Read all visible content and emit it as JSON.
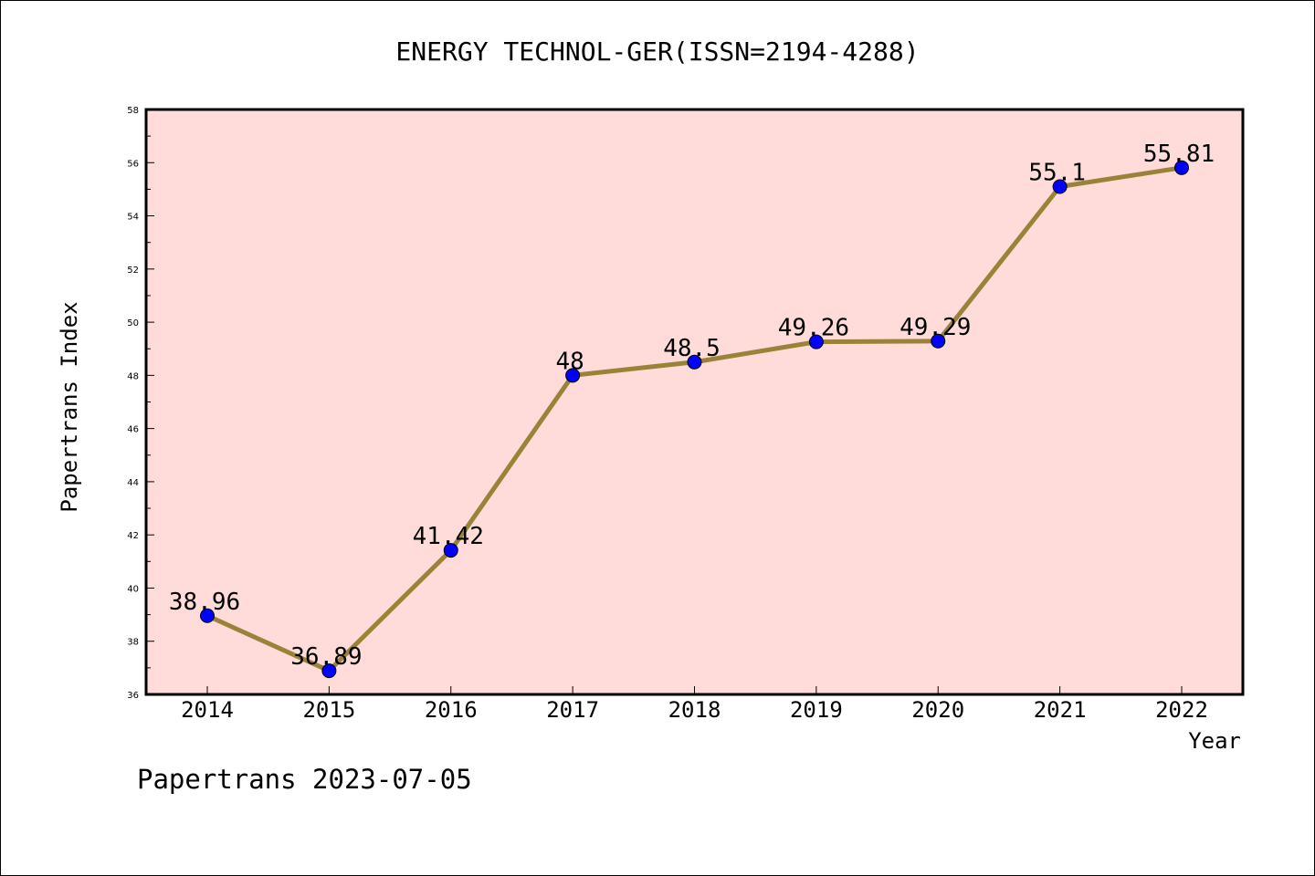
{
  "chart_data": {
    "type": "line",
    "title": "ENERGY TECHNOL-GER(ISSN=2194-4288)",
    "xlabel": "Year",
    "ylabel": "Papertrans Index",
    "categories": [
      "2014",
      "2015",
      "2016",
      "2017",
      "2018",
      "2019",
      "2020",
      "2021",
      "2022"
    ],
    "series": [
      {
        "values": [
          38.96,
          36.89,
          41.42,
          48,
          48.5,
          49.26,
          49.29,
          55.1,
          55.81
        ],
        "labels": [
          "38.96",
          "36.89",
          "41.42",
          "48",
          "48.5",
          "49.26",
          "49.29",
          "55.1",
          "55.81"
        ]
      }
    ],
    "ylim": [
      36,
      58
    ],
    "yticks": [
      "36",
      "38",
      "40",
      "42",
      "44",
      "46",
      "48",
      "50",
      "52",
      "54",
      "56",
      "58"
    ],
    "grid": false,
    "line_color": "#9a8339",
    "marker_color": "#0000ff",
    "plot_background": "#ffdcd9"
  },
  "footer": "Papertrans 2023-07-05"
}
